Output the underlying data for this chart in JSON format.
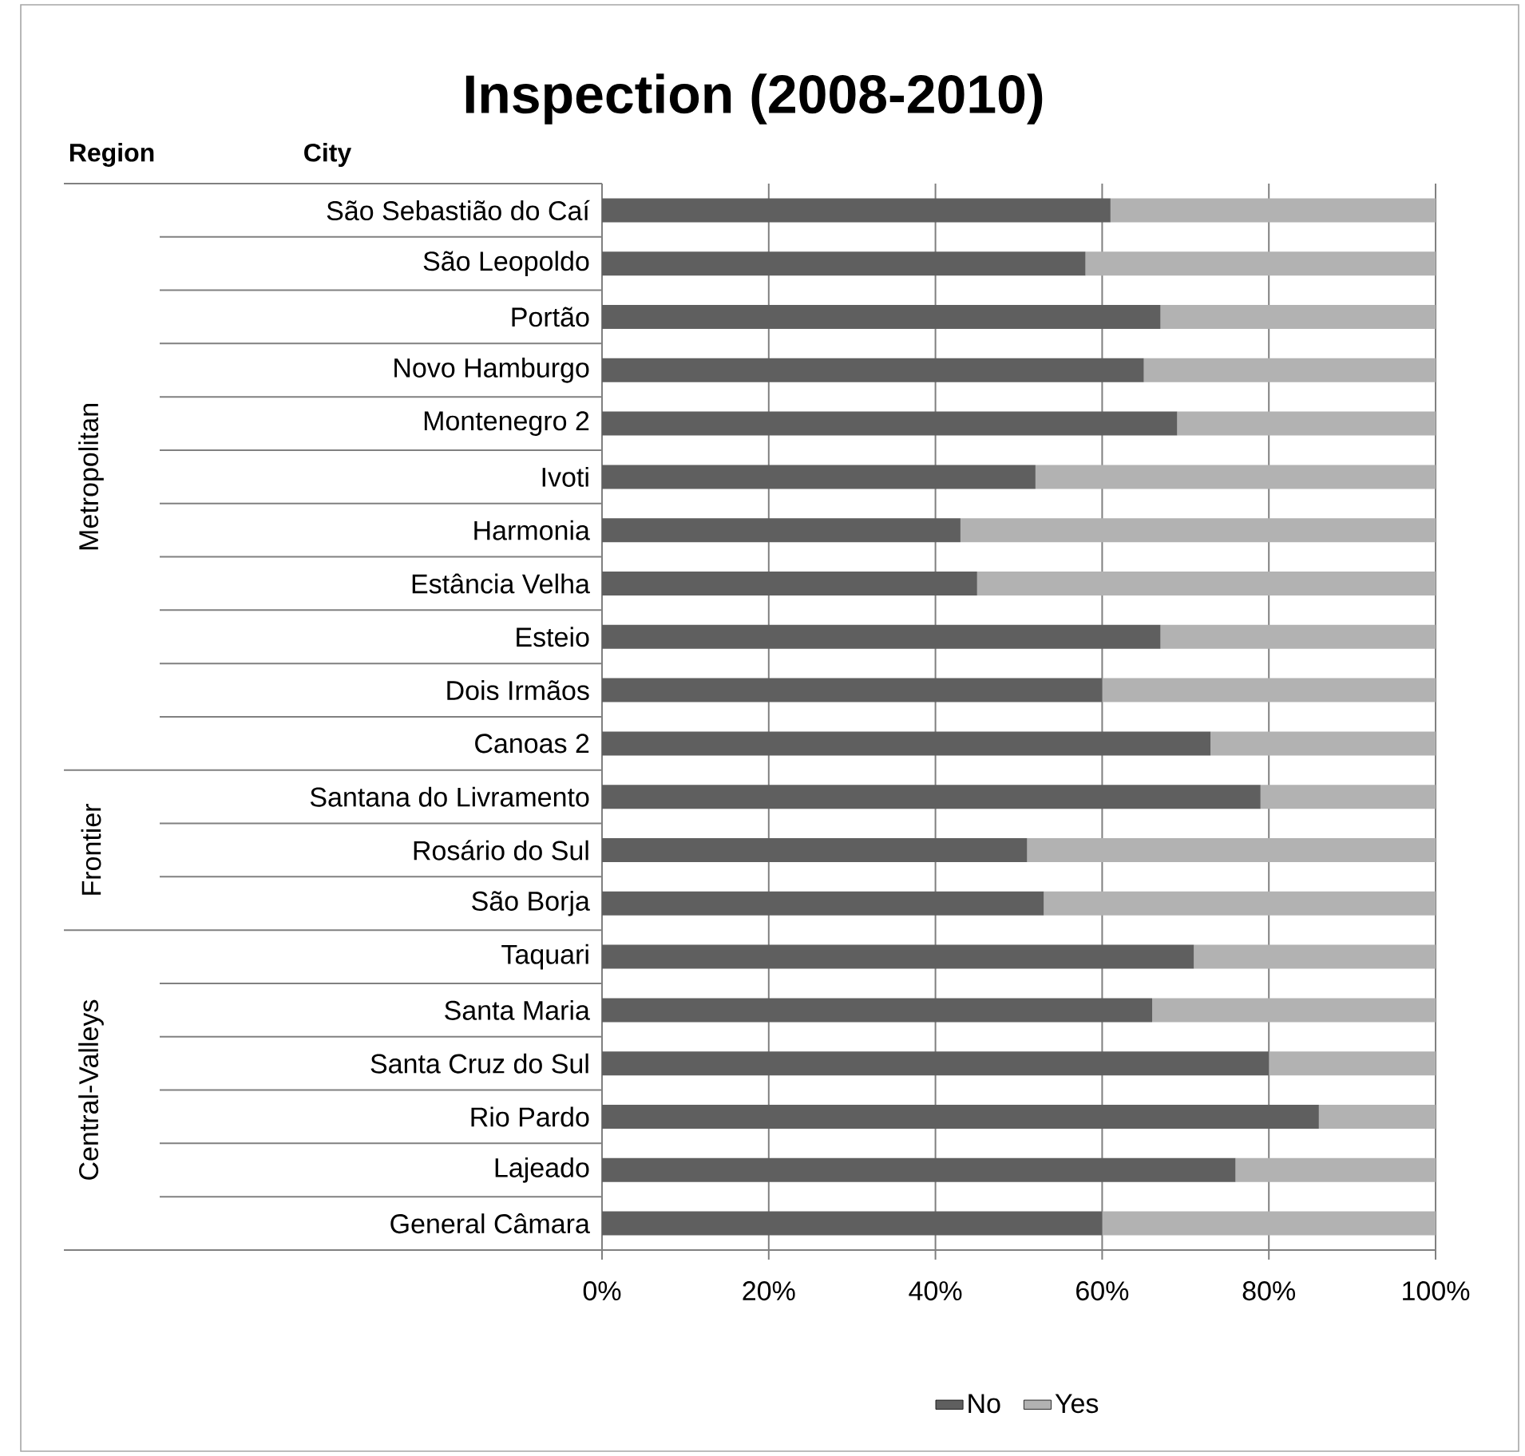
{
  "chart_data": {
    "type": "bar",
    "orientation": "horizontal",
    "stacked": true,
    "title": "Inspection (2008-2010)",
    "categories": [
      "São Sebastião do Caí",
      "São Leopoldo",
      "Portão",
      "Novo Hamburgo",
      "Montenegro 2",
      "Ivoti",
      "Harmonia",
      "Estância Velha",
      "Esteio",
      "Dois Irmãos",
      "Canoas 2",
      "Santana do Livramento",
      "Rosário do Sul",
      "São Borja",
      "Taquari",
      "Santa Maria",
      "Santa Cruz do Sul",
      "Rio Pardo",
      "Lajeado",
      "General Câmara"
    ],
    "series": [
      {
        "name": "No",
        "color": "#5f5f5f",
        "values": [
          61,
          58,
          67,
          65,
          69,
          52,
          43,
          45,
          67,
          60,
          73,
          79,
          51,
          53,
          71,
          66,
          80,
          86,
          76,
          60
        ]
      },
      {
        "name": "Yes",
        "color": "#b2b2b2",
        "values": [
          39,
          42,
          33,
          35,
          31,
          48,
          57,
          55,
          33,
          40,
          27,
          21,
          49,
          47,
          29,
          34,
          20,
          14,
          24,
          40
        ]
      }
    ],
    "xlim": [
      0,
      100
    ],
    "xticks": [
      {
        "value": 0,
        "label": "0%"
      },
      {
        "value": 20,
        "label": "20%"
      },
      {
        "value": 40,
        "label": "40%"
      },
      {
        "value": 60,
        "label": "60%"
      },
      {
        "value": 80,
        "label": "80%"
      },
      {
        "value": 100,
        "label": "100%"
      }
    ],
    "grid": "x",
    "legend": "bottom",
    "annotations": [
      "Region",
      "City",
      "Metropolitan",
      "Frontier",
      "Central-Valleys"
    ]
  }
}
